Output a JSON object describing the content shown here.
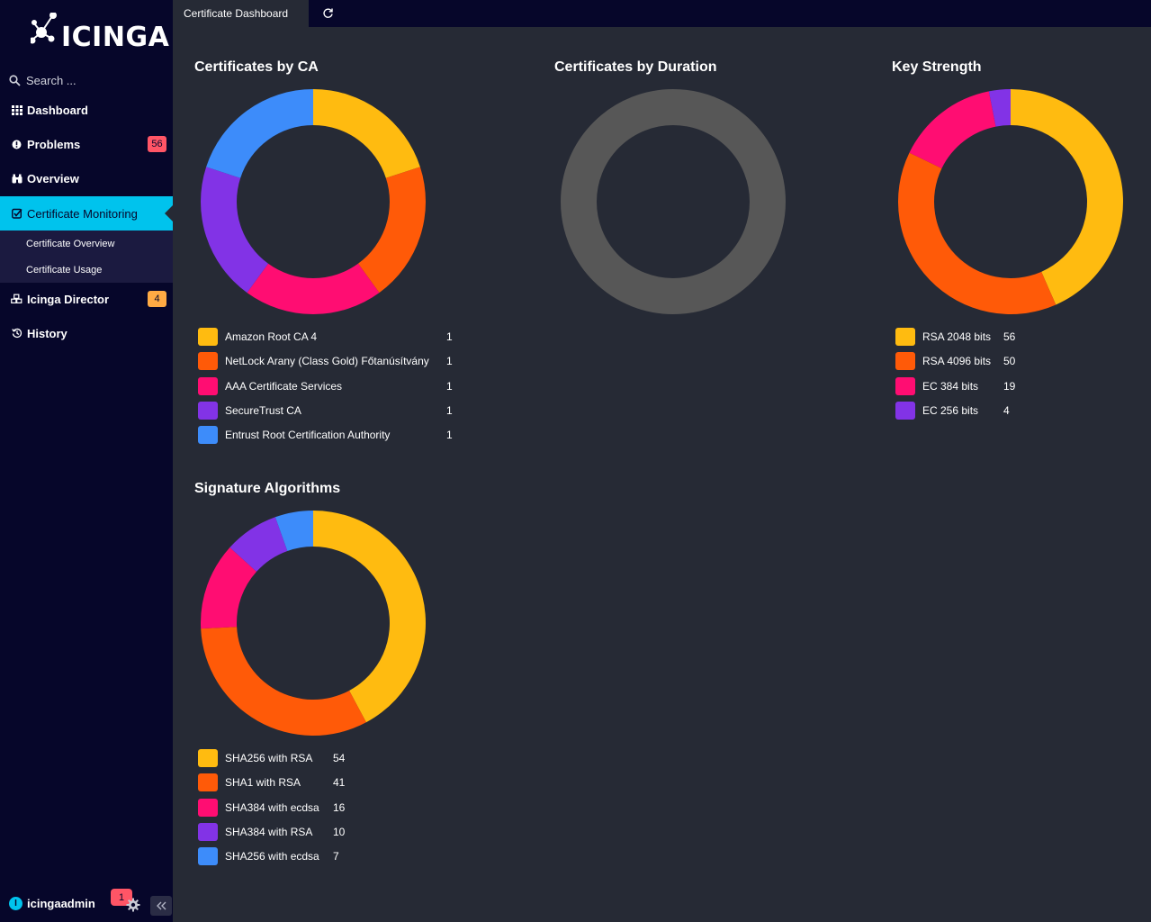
{
  "app": {
    "logo_text": "ICINGA"
  },
  "search": {
    "placeholder": "Search ..."
  },
  "sidebar": {
    "items": [
      {
        "label": "Dashboard",
        "icon": "dashboard-grid-icon"
      },
      {
        "label": "Problems",
        "icon": "exclamation-circle-icon",
        "badge": "56"
      },
      {
        "label": "Overview",
        "icon": "binoculars-icon"
      },
      {
        "label": "Certificate Monitoring",
        "icon": "check-square-icon",
        "active": true
      },
      {
        "label": "Icinga Director",
        "icon": "cubes-icon",
        "badge": "4"
      },
      {
        "label": "History",
        "icon": "history-icon"
      }
    ],
    "subitems": [
      {
        "label": "Certificate Overview"
      },
      {
        "label": "Certificate Usage"
      }
    ]
  },
  "user": {
    "name": "icingaadmin",
    "initial": "I",
    "notifications": "1"
  },
  "topbar": {
    "tab": "Certificate Dashboard"
  },
  "colors": {
    "yellow": "#ffbb10",
    "orange": "#ff5a08",
    "pink": "#ff0d72",
    "purple": "#8233e6",
    "blue": "#3d8cfa",
    "gray": "#575757",
    "accent": "#00c3ed"
  },
  "chart_data": [
    {
      "type": "pie",
      "title": "Certificates by CA",
      "categories": [
        "Amazon Root CA 4",
        "NetLock Arany (Class Gold) Főtanúsítvány",
        "AAA Certificate Services",
        "SecureTrust CA",
        "Entrust Root Certification Authority"
      ],
      "values": [
        1,
        1,
        1,
        1,
        1
      ],
      "value_labels": [
        "1",
        "1",
        "1",
        "1",
        "1"
      ],
      "colors": [
        "#ffbb10",
        "#ff5a08",
        "#ff0d72",
        "#8233e6",
        "#3d8cfa"
      ],
      "legend": "bottom"
    },
    {
      "type": "pie",
      "title": "Certificates by Duration",
      "categories": [],
      "values": [],
      "value_labels": [],
      "colors": [
        "#575757"
      ],
      "legend": "none"
    },
    {
      "type": "pie",
      "title": "Key Strength",
      "categories": [
        "RSA 2048 bits",
        "RSA 4096 bits",
        "EC 384 bits",
        "EC 256 bits"
      ],
      "values": [
        56,
        50,
        19,
        4
      ],
      "value_labels": [
        "56",
        "50",
        "19",
        "4"
      ],
      "colors": [
        "#ffbb10",
        "#ff5a08",
        "#ff0d72",
        "#8233e6"
      ],
      "legend": "bottom"
    },
    {
      "type": "pie",
      "title": "Signature Algorithms",
      "categories": [
        "SHA256 with RSA",
        "SHA1 with RSA",
        "SHA384 with ecdsa",
        "SHA384 with RSA",
        "SHA256 with ecdsa"
      ],
      "values": [
        54,
        41,
        16,
        10,
        7
      ],
      "value_labels": [
        "54",
        "41",
        "16",
        "10",
        "7"
      ],
      "colors": [
        "#ffbb10",
        "#ff5a08",
        "#ff0d72",
        "#8233e6",
        "#3d8cfa"
      ],
      "legend": "bottom"
    }
  ]
}
